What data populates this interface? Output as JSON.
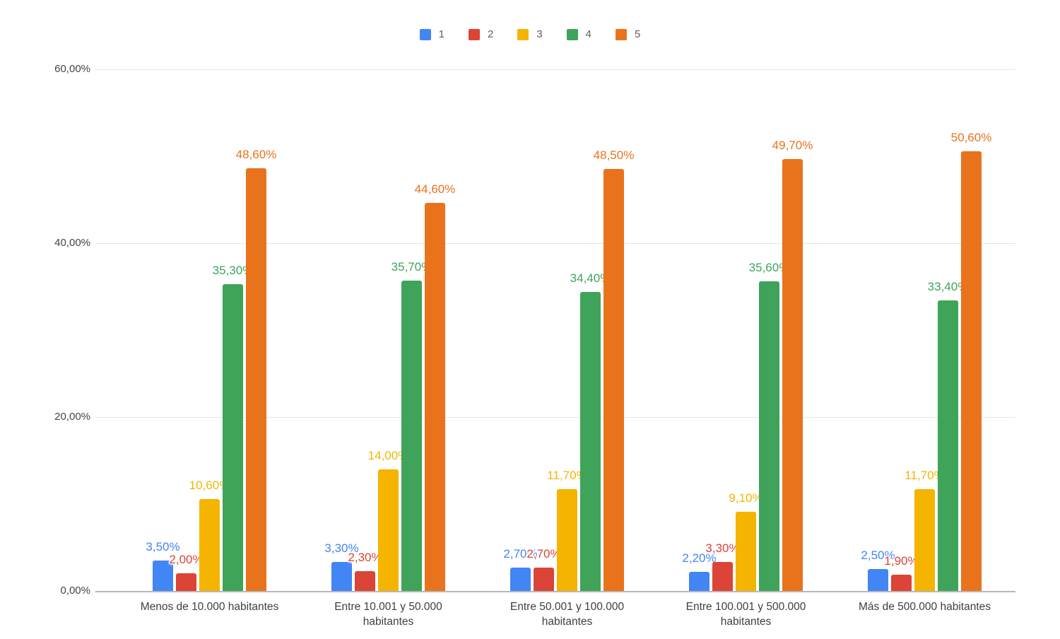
{
  "chart_data": {
    "type": "bar",
    "title": "",
    "xlabel": "",
    "ylabel": "",
    "categories": [
      "Menos de 10.000 habitantes",
      "Entre 10.001 y 50.000 habitantes",
      "Entre 50.001 y 100.000 habitantes",
      "Entre 100.001 y 500.000 habitantes",
      "Más de 500.000 habitantes"
    ],
    "categories_display": [
      "Menos de 10.000 habitantes",
      "Entre 10.001 y 50.000\nhabitantes",
      "Entre 50.001 y 100.000\nhabitantes",
      "Entre 100.001 y 500.000\nhabitantes",
      "Más de 500.000 habitantes"
    ],
    "series": [
      {
        "name": "1",
        "color": "#4285F4",
        "values": [
          3.5,
          3.3,
          2.7,
          2.2,
          2.5
        ],
        "labels": [
          "3,50%",
          "3,30%",
          "2,70%",
          "2,20%",
          "2,50%"
        ]
      },
      {
        "name": "2",
        "color": "#DB4437",
        "values": [
          2.0,
          2.3,
          2.7,
          3.3,
          1.9
        ],
        "labels": [
          "2,00%",
          "2,30%",
          "2,70%",
          "3,30%",
          "1,90%"
        ]
      },
      {
        "name": "3",
        "color": "#F4B400",
        "values": [
          10.6,
          14.0,
          11.7,
          9.1,
          11.7
        ],
        "labels": [
          "10,60%",
          "14,00%",
          "11,70%",
          "9,10%",
          "11,70%"
        ]
      },
      {
        "name": "4",
        "color": "#3FA35A",
        "values": [
          35.3,
          35.7,
          34.4,
          35.6,
          33.4
        ],
        "labels": [
          "35,30%",
          "35,70%",
          "34,40%",
          "35,60%",
          "33,40%"
        ]
      },
      {
        "name": "5",
        "color": "#E9731D",
        "values": [
          48.6,
          44.6,
          48.5,
          49.7,
          50.6
        ],
        "labels": [
          "48,60%",
          "44,60%",
          "48,50%",
          "49,70%",
          "50,60%"
        ]
      }
    ],
    "y_axis": {
      "ticks": [
        "0,00%",
        "20,00%",
        "40,00%",
        "60,00%"
      ],
      "tick_values": [
        0,
        20,
        40,
        60
      ],
      "min": 0,
      "max": 60
    },
    "legend": {
      "position": "top",
      "entries": [
        "1",
        "2",
        "3",
        "4",
        "5"
      ]
    },
    "grid": true,
    "ylim": [
      0,
      60
    ]
  }
}
